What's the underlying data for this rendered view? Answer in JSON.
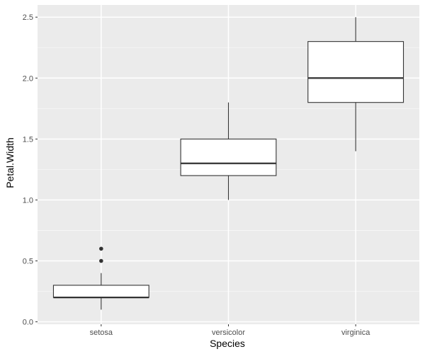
{
  "chart_data": {
    "type": "boxplot",
    "xlabel": "Species",
    "ylabel": "Petal.Width",
    "categories": [
      "setosa",
      "versicolor",
      "virginica"
    ],
    "ylim": [
      -0.02,
      2.6
    ],
    "yticks": [
      0.0,
      0.5,
      1.0,
      1.5,
      2.0,
      2.5
    ],
    "ytick_labels": [
      "0.0",
      "0.5",
      "1.0",
      "1.5",
      "2.0",
      "2.5"
    ],
    "boxes": [
      {
        "category": "setosa",
        "whisker_low": 0.1,
        "q1": 0.2,
        "median": 0.2,
        "q3": 0.3,
        "whisker_high": 0.4,
        "outliers": [
          0.5,
          0.6
        ]
      },
      {
        "category": "versicolor",
        "whisker_low": 1.0,
        "q1": 1.2,
        "median": 1.3,
        "q3": 1.5,
        "whisker_high": 1.8,
        "outliers": []
      },
      {
        "category": "virginica",
        "whisker_low": 1.4,
        "q1": 1.8,
        "median": 2.0,
        "q3": 2.3,
        "whisker_high": 2.5,
        "outliers": []
      }
    ],
    "grid": true,
    "legend": "none",
    "colors": {
      "panel_background": "#ebebeb",
      "grid_major": "#ffffff",
      "grid_minor": "#f7f7f7",
      "box_fill": "#ffffff",
      "box_stroke": "#333333"
    }
  }
}
